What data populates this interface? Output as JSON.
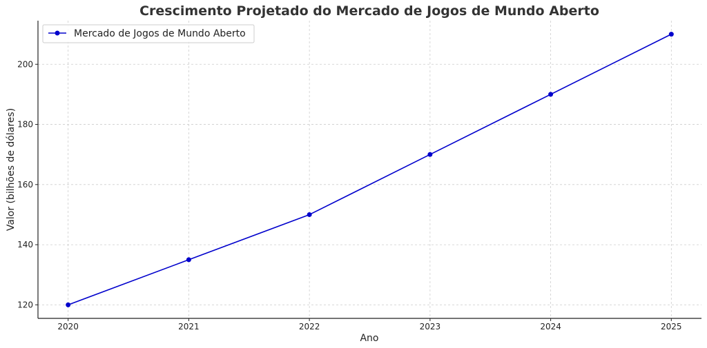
{
  "chart_data": {
    "type": "line",
    "title": "Crescimento Projetado do Mercado de Jogos de Mundo Aberto",
    "xlabel": "Ano",
    "ylabel": "Valor (bilhões de dólares)",
    "x": [
      2020,
      2021,
      2022,
      2023,
      2024,
      2025
    ],
    "xlim": [
      2019.75,
      2025.25
    ],
    "ylim": [
      115.5,
      214.5
    ],
    "yticks": [
      120,
      140,
      160,
      180,
      200
    ],
    "grid": true,
    "legend_position": "top-left",
    "series": [
      {
        "name": "Mercado de Jogos de Mundo Aberto",
        "color": "#0000cc",
        "marker": "circle",
        "values": [
          120,
          135,
          150,
          170,
          190,
          210
        ]
      }
    ]
  }
}
